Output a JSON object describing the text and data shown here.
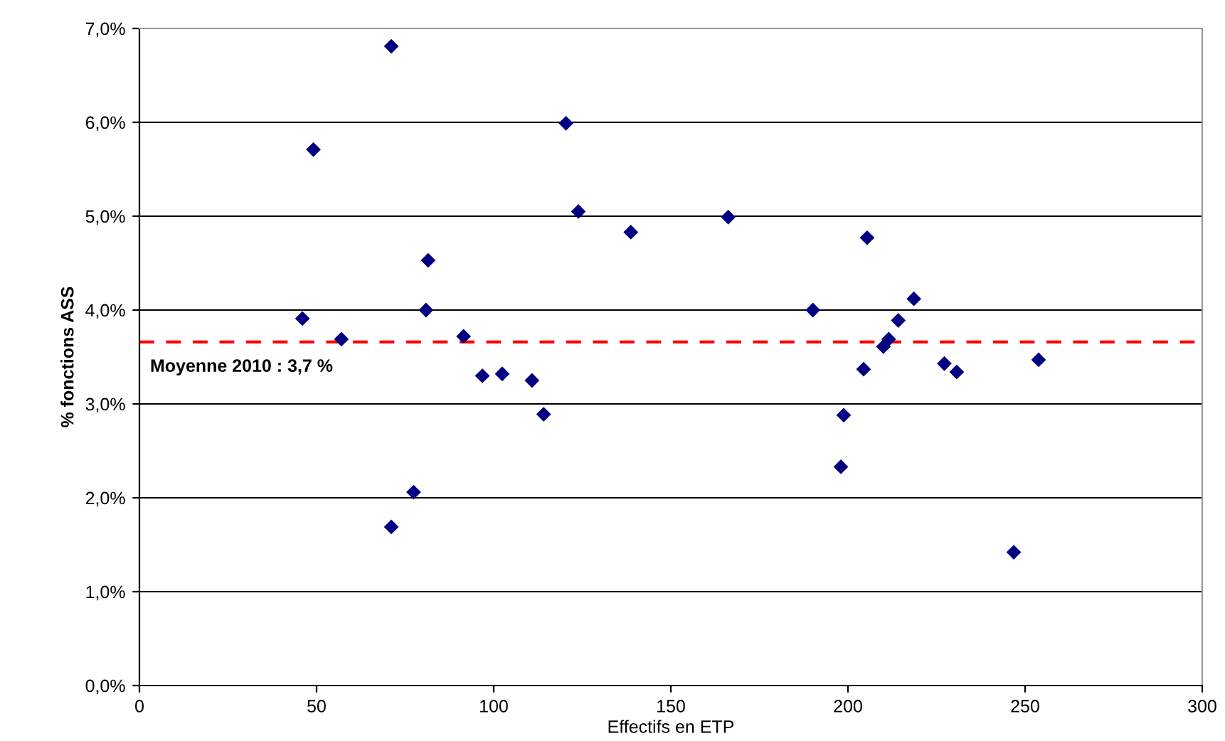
{
  "chart_data": {
    "type": "scatter",
    "xlabel": "Effectifs en ETP",
    "ylabel": "% fonctions ASS",
    "x": [
      71.1,
      49.1,
      120.4,
      123.9,
      138.7,
      81.5,
      46.0,
      80.9,
      57.0,
      91.5,
      96.8,
      102.4,
      110.8,
      114.1,
      77.4,
      71.1,
      166.2,
      205.4,
      190.1,
      218.6,
      214.2,
      211.5,
      210.0,
      204.4,
      227.2,
      230.7,
      253.8,
      198.8,
      198.0,
      246.8
    ],
    "series": [
      {
        "color": "#000080",
        "values": [
          6.81,
          5.71,
          5.99,
          5.05,
          4.83,
          4.53,
          3.91,
          4.0,
          3.69,
          3.72,
          3.3,
          3.32,
          3.25,
          2.89,
          2.06,
          1.69,
          4.99,
          4.77,
          4.0,
          4.12,
          3.89,
          3.69,
          3.61,
          3.37,
          3.43,
          3.34,
          3.47,
          2.88,
          2.33,
          1.42
        ]
      }
    ],
    "marker": "diamond",
    "xlim": [
      0,
      300
    ],
    "xticks": [
      0,
      50,
      100,
      150,
      200,
      250,
      300
    ],
    "ylim": [
      0,
      7
    ],
    "yticks": [
      {
        "value": 0,
        "label": "0,0%"
      },
      {
        "value": 1,
        "label": "1,0%"
      },
      {
        "value": 2,
        "label": "2,0%"
      },
      {
        "value": 3,
        "label": "3,0%"
      },
      {
        "value": 4,
        "label": "4,0%"
      },
      {
        "value": 5,
        "label": "5,0%"
      },
      {
        "value": 6,
        "label": "6,0%"
      },
      {
        "value": 7,
        "label": "7,0%"
      }
    ],
    "grid": "y",
    "ref_lines": [
      {
        "axis": "y",
        "value": 3.66,
        "label": "Moyenne 2010 : 3,7 %",
        "color": "#ff0000",
        "line_style": "dashed"
      }
    ]
  }
}
